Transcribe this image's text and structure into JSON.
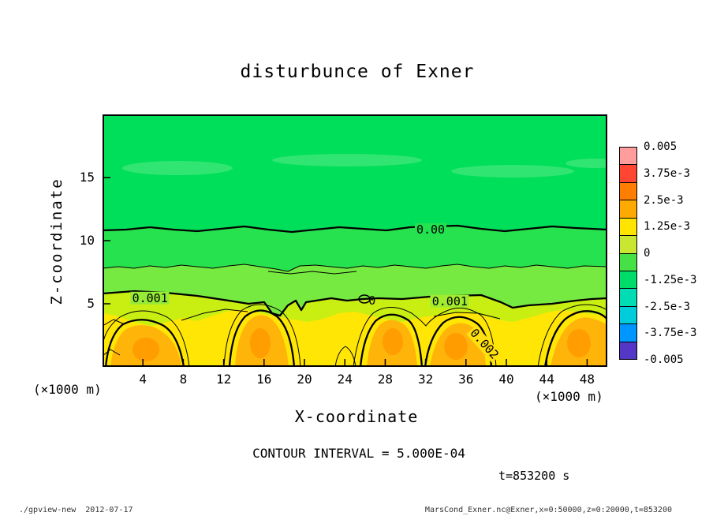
{
  "title": "disturbunce of Exner",
  "axes": {
    "x_label": "X-coordinate",
    "y_label": "Z-coordinate",
    "x_unit_left": "(×1000 m)",
    "x_unit_right": "(×1000 m)"
  },
  "captions": {
    "contour_interval": "CONTOUR INTERVAL = 5.000E-04",
    "time": "t=853200 s"
  },
  "footer": {
    "left": "./gpview-new  2012-07-17",
    "right": "MarsCond_Exner.nc@Exner,x=0:50000,z=0:20000,t=853200"
  },
  "chart_data": {
    "type": "filled-contour",
    "title": "disturbunce of Exner",
    "xlabel": "X-coordinate",
    "ylabel": "Z-coordinate",
    "axis_units": "×1000 m",
    "xlim": [
      0,
      50
    ],
    "ylim": [
      0,
      20
    ],
    "x_ticks": [
      4,
      8,
      12,
      16,
      20,
      24,
      28,
      32,
      36,
      40,
      44,
      48
    ],
    "y_ticks": [
      5,
      10,
      15
    ],
    "contour_interval": 0.0005,
    "colorbar_range": [
      -0.005,
      0.005
    ],
    "thick_contour_levels": [
      0,
      0.001,
      0.002
    ],
    "time_seconds": 853200,
    "contour_labels": [
      {
        "text": "0.00",
        "x": 32.5,
        "z": 10.9,
        "angle": 0,
        "bg": "#23e250"
      },
      {
        "text": "0.001",
        "x": 4.7,
        "z": 5.45,
        "angle": 0,
        "bg": "#96eb36"
      },
      {
        "text": "0.001",
        "x": 34.4,
        "z": 5.2,
        "angle": 0,
        "bg": "#a2ec30"
      },
      {
        "text": "0",
        "x": 26.7,
        "z": 5.25,
        "angle": 0,
        "bg": ""
      },
      {
        "text": "0.002",
        "x": 37.8,
        "z": 1.8,
        "angle": 48,
        "bg": "#ffdf10"
      }
    ],
    "colorbar": {
      "labels": [
        "0.005",
        "3.75e-3",
        "2.5e-3",
        "1.25e-3",
        "0",
        "-1.25e-3",
        "-2.5e-3",
        "-3.75e-3",
        "-0.005"
      ],
      "colors_top_to_bottom": [
        "#ff9c9c",
        "#ff4632",
        "#ff7d00",
        "#ffaa00",
        "#ffe400",
        "#c8e632",
        "#46e146",
        "#00dc69",
        "#00dcb4",
        "#00ccdc",
        "#0096ff",
        "#5537c8"
      ]
    },
    "field_bands": [
      {
        "z_from": 11,
        "z_to": 20,
        "approx_value": "0 to -5e-4",
        "fill": "#00df5a"
      },
      {
        "z_from": 8,
        "z_to": 11,
        "approx_value": "0 to 5e-4",
        "fill": "#27e24f"
      },
      {
        "z_from": 5.5,
        "z_to": 8,
        "approx_value": "5e-4 to 1e-3",
        "fill": "#77ea41"
      },
      {
        "z_from": 4,
        "z_to": 5.5,
        "approx_value": "1e-3 to 1.5e-3",
        "fill": "#c9ef12"
      },
      {
        "z_from": 0,
        "z_to": 4,
        "approx_value": "1.5e-3 to 2e-3",
        "fill": "#ffe605"
      },
      {
        "z_from": 0,
        "z_to": 3,
        "approx_value": "above 2e-3, blobs near x 2-7, 14-18, 27-31, 33-38, 45-50",
        "fill": "#ffb40a"
      }
    ]
  }
}
